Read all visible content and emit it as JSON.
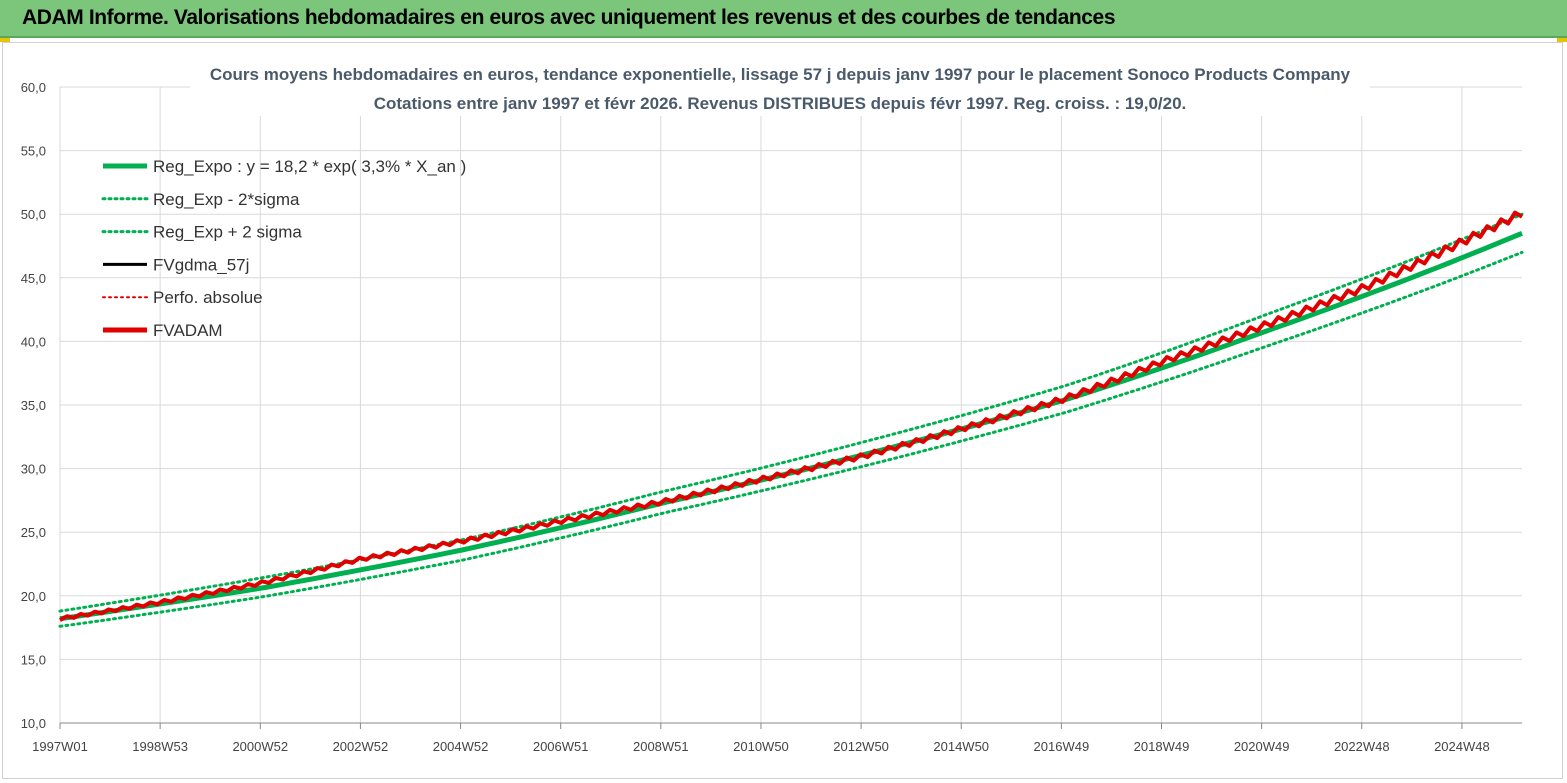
{
  "header": {
    "title": "ADAM Informe. Valorisations hebdomadaires en euros avec uniquement les revenus et des courbes de tendances"
  },
  "chart_data": {
    "type": "line",
    "title": "Cours moyens hebdomadaires en euros, tendance exponentielle, lissage 57 j depuis janv 1997  pour le placement Sonoco Products Company",
    "subtitle": "Cotations entre janv 1997 et févr 2026. Revenus DISTRIBUES depuis févr 1997. Reg. croiss. : 19,0/20.",
    "xlabel": "",
    "ylabel": "",
    "ylim": [
      10,
      60
    ],
    "y_ticks": [
      "10,0",
      "15,0",
      "20,0",
      "25,0",
      "30,0",
      "35,0",
      "40,0",
      "45,0",
      "50,0",
      "55,0",
      "60,0"
    ],
    "x_ticks": [
      "1997W01",
      "1998W53",
      "2000W52",
      "2002W52",
      "2004W52",
      "2006W51",
      "2008W51",
      "2010W50",
      "2012W50",
      "2014W50",
      "2016W49",
      "2018W49",
      "2020W49",
      "2022W48",
      "2024W48"
    ],
    "x_range_years": [
      1997.0,
      2026.1
    ],
    "grid": true,
    "legend_position": "top-left",
    "series": [
      {
        "name": "Reg_Expo : y = 18,2 * exp( 3,3% *  X_an )",
        "color": "#00b050",
        "style": "solid",
        "x": [
          1997.0,
          2001.0,
          2005.0,
          2009.0,
          2013.0,
          2017.0,
          2021.0,
          2026.1
        ],
        "values": [
          18.2,
          20.6,
          23.6,
          27.3,
          31.1,
          35.4,
          40.8,
          48.5
        ]
      },
      {
        "name": "Reg_Exp - 2*sigma",
        "color": "#00b050",
        "style": "dotted",
        "x": [
          1997.0,
          2001.0,
          2005.0,
          2009.0,
          2013.0,
          2017.0,
          2021.0,
          2026.1
        ],
        "values": [
          17.6,
          19.9,
          22.8,
          26.5,
          30.2,
          34.4,
          39.6,
          47.0
        ]
      },
      {
        "name": "Reg_Exp + 2 sigma",
        "color": "#00b050",
        "style": "dotted",
        "x": [
          1997.0,
          2001.0,
          2005.0,
          2009.0,
          2013.0,
          2017.0,
          2021.0,
          2026.1
        ],
        "values": [
          18.8,
          21.4,
          24.4,
          28.2,
          32.1,
          36.5,
          42.1,
          50.0
        ]
      },
      {
        "name": "FVgdma_57j",
        "color": "#000000",
        "style": "solid",
        "x": [],
        "values": []
      },
      {
        "name": "Perfo. absolue",
        "color": "#e00000",
        "style": "dotted",
        "x": [],
        "values": []
      },
      {
        "name": "FVADAM",
        "color": "#e00000",
        "style": "solid",
        "x": [
          1997.0,
          1999.0,
          2001.0,
          2003.0,
          2005.0,
          2007.0,
          2009.0,
          2011.0,
          2013.0,
          2015.0,
          2017.0,
          2019.0,
          2021.0,
          2023.0,
          2025.0,
          2026.1
        ],
        "values": [
          18.2,
          19.5,
          21.0,
          22.9,
          24.3,
          25.9,
          27.4,
          29.2,
          31.0,
          33.2,
          35.5,
          38.5,
          41.3,
          44.3,
          48.0,
          50.1
        ]
      }
    ]
  }
}
